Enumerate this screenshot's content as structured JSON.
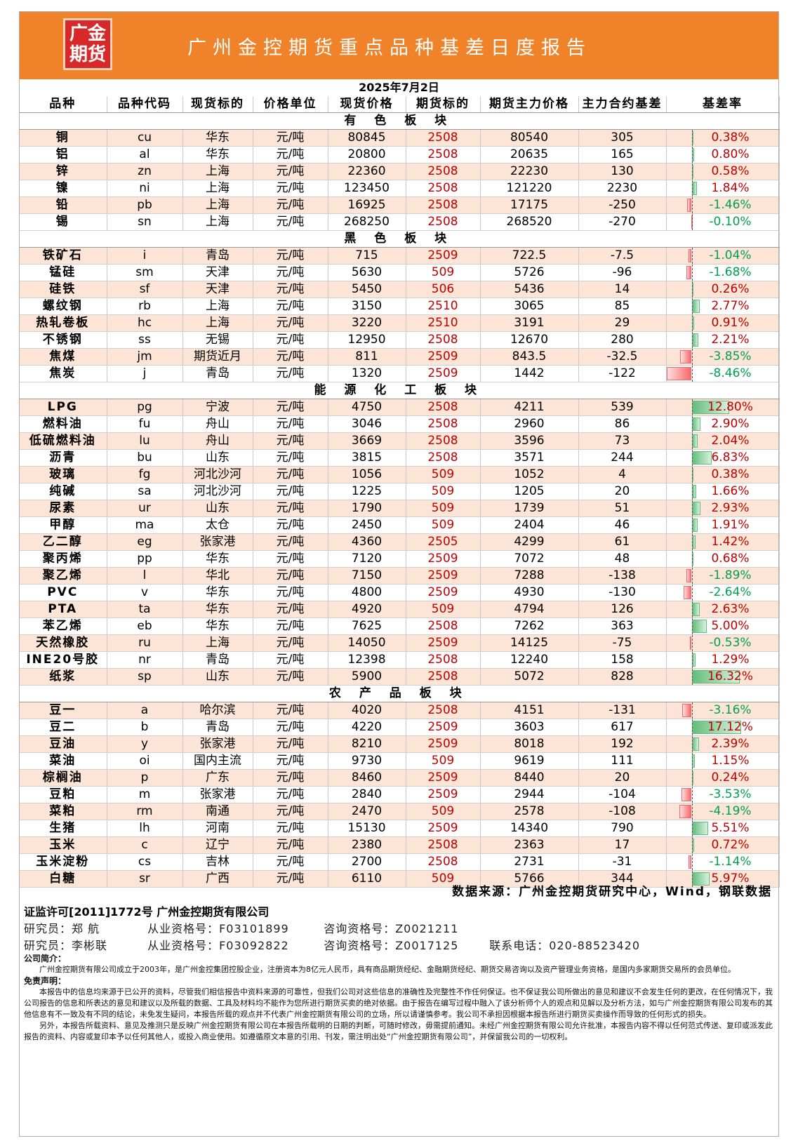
{
  "header": {
    "logo_line1": "广金",
    "logo_line2": "期货",
    "title": "广州金控期货重点品种基差日度报告"
  },
  "date": "2025年7月2日",
  "columns": [
    "品种",
    "品种代码",
    "现货标的",
    "价格单位",
    "现货价格",
    "期货标的",
    "期货主力价格",
    "主力合约基差",
    "基差率"
  ],
  "colors": {
    "header_bg": "#f0832a",
    "logo_bg": "#d9282a",
    "row_band": "#fce4d6",
    "futures_text": "#c00000",
    "positive_bar": "#63be7b",
    "negative_bar": "#f8696b"
  },
  "sections": [
    {
      "title": "有 色 板 块",
      "rows": [
        [
          "铜",
          "cu",
          "华东",
          "元/吨",
          "80845",
          "2508",
          "80540",
          "305",
          "0.38%"
        ],
        [
          "铝",
          "al",
          "华东",
          "元/吨",
          "20800",
          "2508",
          "20635",
          "165",
          "0.80%"
        ],
        [
          "锌",
          "zn",
          "上海",
          "元/吨",
          "22360",
          "2508",
          "22230",
          "130",
          "0.58%"
        ],
        [
          "镍",
          "ni",
          "上海",
          "元/吨",
          "123450",
          "2508",
          "121220",
          "2230",
          "1.84%"
        ],
        [
          "铅",
          "pb",
          "上海",
          "元/吨",
          "16925",
          "2508",
          "17175",
          "-250",
          "-1.46%"
        ],
        [
          "锡",
          "sn",
          "上海",
          "元/吨",
          "268250",
          "2508",
          "268520",
          "-270",
          "-0.10%"
        ]
      ]
    },
    {
      "title": "黑 色 板 块",
      "rows": [
        [
          "铁矿石",
          "i",
          "青岛",
          "元/吨",
          "715",
          "2509",
          "722.5",
          "-7.5",
          "-1.04%"
        ],
        [
          "锰硅",
          "sm",
          "天津",
          "元/吨",
          "5630",
          "509",
          "5726",
          "-96",
          "-1.68%"
        ],
        [
          "硅铁",
          "sf",
          "天津",
          "元/吨",
          "5450",
          "506",
          "5436",
          "14",
          "0.26%"
        ],
        [
          "螺纹钢",
          "rb",
          "上海",
          "元/吨",
          "3150",
          "2510",
          "3065",
          "85",
          "2.77%"
        ],
        [
          "热轧卷板",
          "hc",
          "上海",
          "元/吨",
          "3220",
          "2510",
          "3191",
          "29",
          "0.91%"
        ],
        [
          "不锈钢",
          "ss",
          "无锡",
          "元/吨",
          "12950",
          "2508",
          "12670",
          "280",
          "2.21%"
        ],
        [
          "焦煤",
          "jm",
          "期货近月",
          "元/吨",
          "811",
          "2509",
          "843.5",
          "-32.5",
          "-3.85%"
        ],
        [
          "焦炭",
          "j",
          "青岛",
          "元/吨",
          "1320",
          "2509",
          "1442",
          "-122",
          "-8.46%"
        ]
      ]
    },
    {
      "title": "能 源 化 工 板 块",
      "rows": [
        [
          "LPG",
          "pg",
          "宁波",
          "元/吨",
          "4750",
          "2508",
          "4211",
          "539",
          "12.80%"
        ],
        [
          "燃料油",
          "fu",
          "舟山",
          "元/吨",
          "3046",
          "2508",
          "2960",
          "86",
          "2.90%"
        ],
        [
          "低硫燃料油",
          "lu",
          "舟山",
          "元/吨",
          "3669",
          "2508",
          "3596",
          "73",
          "2.04%"
        ],
        [
          "沥青",
          "bu",
          "山东",
          "元/吨",
          "3815",
          "2508",
          "3571",
          "244",
          "6.83%"
        ],
        [
          "玻璃",
          "fg",
          "河北沙河",
          "元/吨",
          "1056",
          "509",
          "1052",
          "4",
          "0.38%"
        ],
        [
          "纯碱",
          "sa",
          "河北沙河",
          "元/吨",
          "1225",
          "509",
          "1205",
          "20",
          "1.66%"
        ],
        [
          "尿素",
          "ur",
          "山东",
          "元/吨",
          "1790",
          "509",
          "1739",
          "51",
          "2.93%"
        ],
        [
          "甲醇",
          "ma",
          "太仓",
          "元/吨",
          "2450",
          "509",
          "2404",
          "46",
          "1.91%"
        ],
        [
          "乙二醇",
          "eg",
          "张家港",
          "元/吨",
          "4360",
          "2505",
          "4299",
          "61",
          "1.42%"
        ],
        [
          "聚丙烯",
          "pp",
          "华东",
          "元/吨",
          "7120",
          "2509",
          "7072",
          "48",
          "0.68%"
        ],
        [
          "聚乙烯",
          "l",
          "华北",
          "元/吨",
          "7150",
          "2509",
          "7288",
          "-138",
          "-1.89%"
        ],
        [
          "PVC",
          "v",
          "华东",
          "元/吨",
          "4800",
          "2509",
          "4930",
          "-130",
          "-2.64%"
        ],
        [
          "PTA",
          "ta",
          "华东",
          "元/吨",
          "4920",
          "509",
          "4794",
          "126",
          "2.63%"
        ],
        [
          "苯乙烯",
          "eb",
          "华东",
          "元/吨",
          "7625",
          "2508",
          "7262",
          "363",
          "5.00%"
        ],
        [
          "天然橡胶",
          "ru",
          "上海",
          "元/吨",
          "14050",
          "2509",
          "14125",
          "-75",
          "-0.53%"
        ],
        [
          "INE20号胶",
          "nr",
          "青岛",
          "元/吨",
          "12398",
          "2508",
          "12240",
          "158",
          "1.29%"
        ],
        [
          "纸浆",
          "sp",
          "山东",
          "元/吨",
          "5900",
          "2508",
          "5072",
          "828",
          "16.32%"
        ]
      ]
    },
    {
      "title": "农 产 品 板 块",
      "rows": [
        [
          "豆一",
          "a",
          "哈尔滨",
          "元/吨",
          "4020",
          "2508",
          "4151",
          "-131",
          "-3.16%"
        ],
        [
          "豆二",
          "b",
          "青岛",
          "元/吨",
          "4220",
          "2509",
          "3603",
          "617",
          "17.12%"
        ],
        [
          "豆油",
          "y",
          "张家港",
          "元/吨",
          "8210",
          "2509",
          "8018",
          "192",
          "2.39%"
        ],
        [
          "菜油",
          "oi",
          "国内主流",
          "元/吨",
          "9730",
          "509",
          "9619",
          "111",
          "1.15%"
        ],
        [
          "棕榈油",
          "p",
          "广东",
          "元/吨",
          "8460",
          "2509",
          "8440",
          "20",
          "0.24%"
        ],
        [
          "豆粕",
          "m",
          "张家港",
          "元/吨",
          "2840",
          "2509",
          "2944",
          "-104",
          "-3.53%"
        ],
        [
          "菜粕",
          "rm",
          "南通",
          "元/吨",
          "2470",
          "509",
          "2578",
          "-108",
          "-4.19%"
        ],
        [
          "生猪",
          "lh",
          "河南",
          "元/吨",
          "15130",
          "2509",
          "14340",
          "790",
          "5.51%"
        ],
        [
          "玉米",
          "c",
          "辽宁",
          "元/吨",
          "2380",
          "2508",
          "2363",
          "17",
          "0.72%"
        ],
        [
          "玉米淀粉",
          "cs",
          "吉林",
          "元/吨",
          "2700",
          "2508",
          "2731",
          "-31",
          "-1.14%"
        ],
        [
          "白糖",
          "sr",
          "广西",
          "元/吨",
          "6110",
          "509",
          "5766",
          "344",
          "5.97%"
        ]
      ]
    }
  ],
  "source": "数据来源：广州金控期货研究中心，Wind，钢联数据",
  "license": "证监许可[2011]1772号 广州金控期货有限公司",
  "researchers": [
    {
      "role": "研究员：郑  航",
      "qual": "从业资格号：F03101899",
      "consult": "咨询资格号：Z0021211",
      "phone": ""
    },
    {
      "role": "研究员：李彬联",
      "qual": "从业资格号：F03092822",
      "consult": "咨询资格号：Z0017125",
      "phone": "联系电话：020-88523420"
    }
  ],
  "company_intro_title": "公司简介：",
  "company_intro": "广州金控期货有限公司成立于2003年，是广州金控集团控股企业，注册资本为8亿元人民币，具有商品期货经纪、金融期货经纪、期货交易咨询以及资产管理业务资格，是国内多家期货交易所的会员单位。",
  "disclaimer_title": "免责声明：",
  "disclaimer_1": "本报告中的信息均来源于已公开的资料，尽管我们相信报告中资料来源的可靠性，但我们公司对这些信息的准确性及完整性不作任何保证。也不保证我公司所做出的意见和建议不会发生任何的更改，在任何情况下，我公司报告的信息和所表达的意见和建议以及所载的数据、工具及材料均不能作为您所进行期货买卖的绝对依据。由于报告在编写过程中融入了该分析师个人的观点和见解以及分析方法，如与广州金控期货有限公司发布的其他信息有不一致及有不同的结论，未免发生疑问，本报告所载的观点并不代表广州金控期货有限公司的立场，所以请谨慎参考。我公司不承担因根据本报告所进行期货买卖操作而导致的任何形式的损失。",
  "disclaimer_2": "另外，本报告所载资料、意见及推测只是反映广州金控期货有限公司在本报告所载明的日期的判断，可随时修改，毋需提前通知。未经广州金控期货有限公司允许批准，本报告内容不得以任何范式传送、复印或派发此报告的资料、内容或复印本予以任何其他人，或投入商业使用。如遵循原文本意的引用、刊发，需注明出处“广州金控期货有限公司”，并保留我公司的一切权利。"
}
